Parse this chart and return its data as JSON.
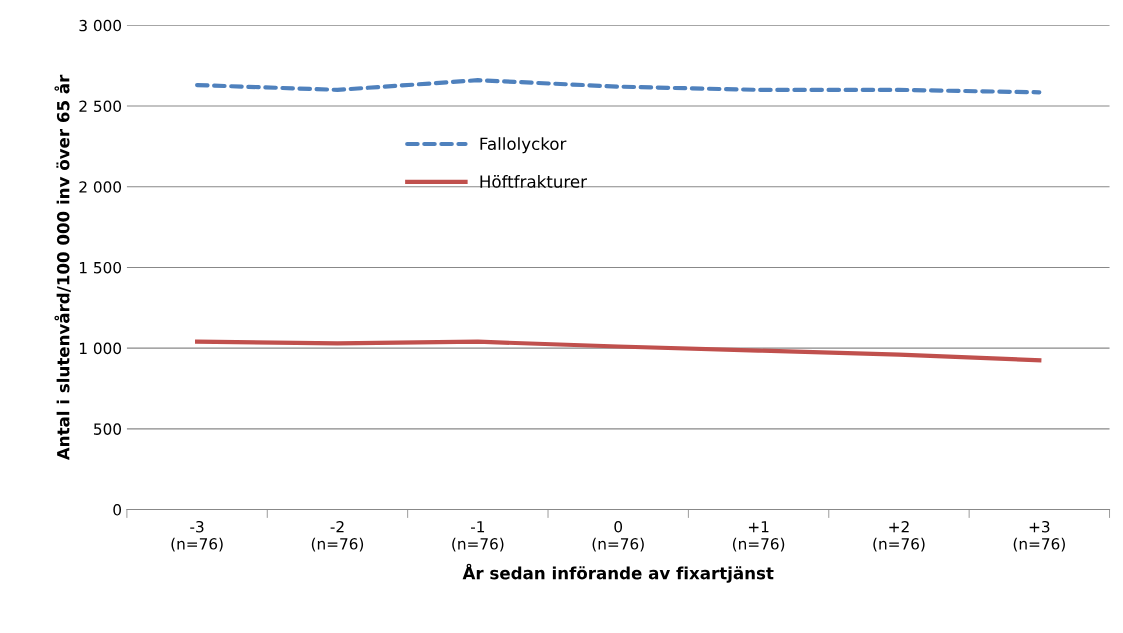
{
  "chart_data": {
    "type": "line",
    "xlabel": "År sedan införande av fixartjänst",
    "ylabel": "Antal i slutenvård/100 000 inv över 65 år",
    "categories": [
      "-3\n(n=76)",
      "-2\n(n=76)",
      "-1\n(n=76)",
      "0\n(n=76)",
      "+1\n(n=76)",
      "+2\n(n=76)",
      "+3\n(n=76)"
    ],
    "series": [
      {
        "name": "Fallolyckor",
        "color": "#4f81bd",
        "line_style": "dashed",
        "values": [
          2630,
          2600,
          2660,
          2620,
          2600,
          2600,
          2585
        ]
      },
      {
        "name": "Höftfrakturer",
        "color": "#c0504d",
        "line_style": "solid",
        "values": [
          1040,
          1030,
          1040,
          1010,
          985,
          960,
          925
        ]
      }
    ],
    "ylim": [
      0,
      3000
    ],
    "yticks": [
      0,
      500,
      {
        "value": 1000,
        "label": "1 000"
      },
      {
        "value": 1500,
        "label": "1 500"
      },
      {
        "value": 2000,
        "label": "2 000"
      },
      {
        "value": 2500,
        "label": "2 500"
      },
      {
        "value": 3000,
        "label": "3 000"
      }
    ],
    "grid": "y",
    "legend": "top left",
    "marker": "none"
  }
}
